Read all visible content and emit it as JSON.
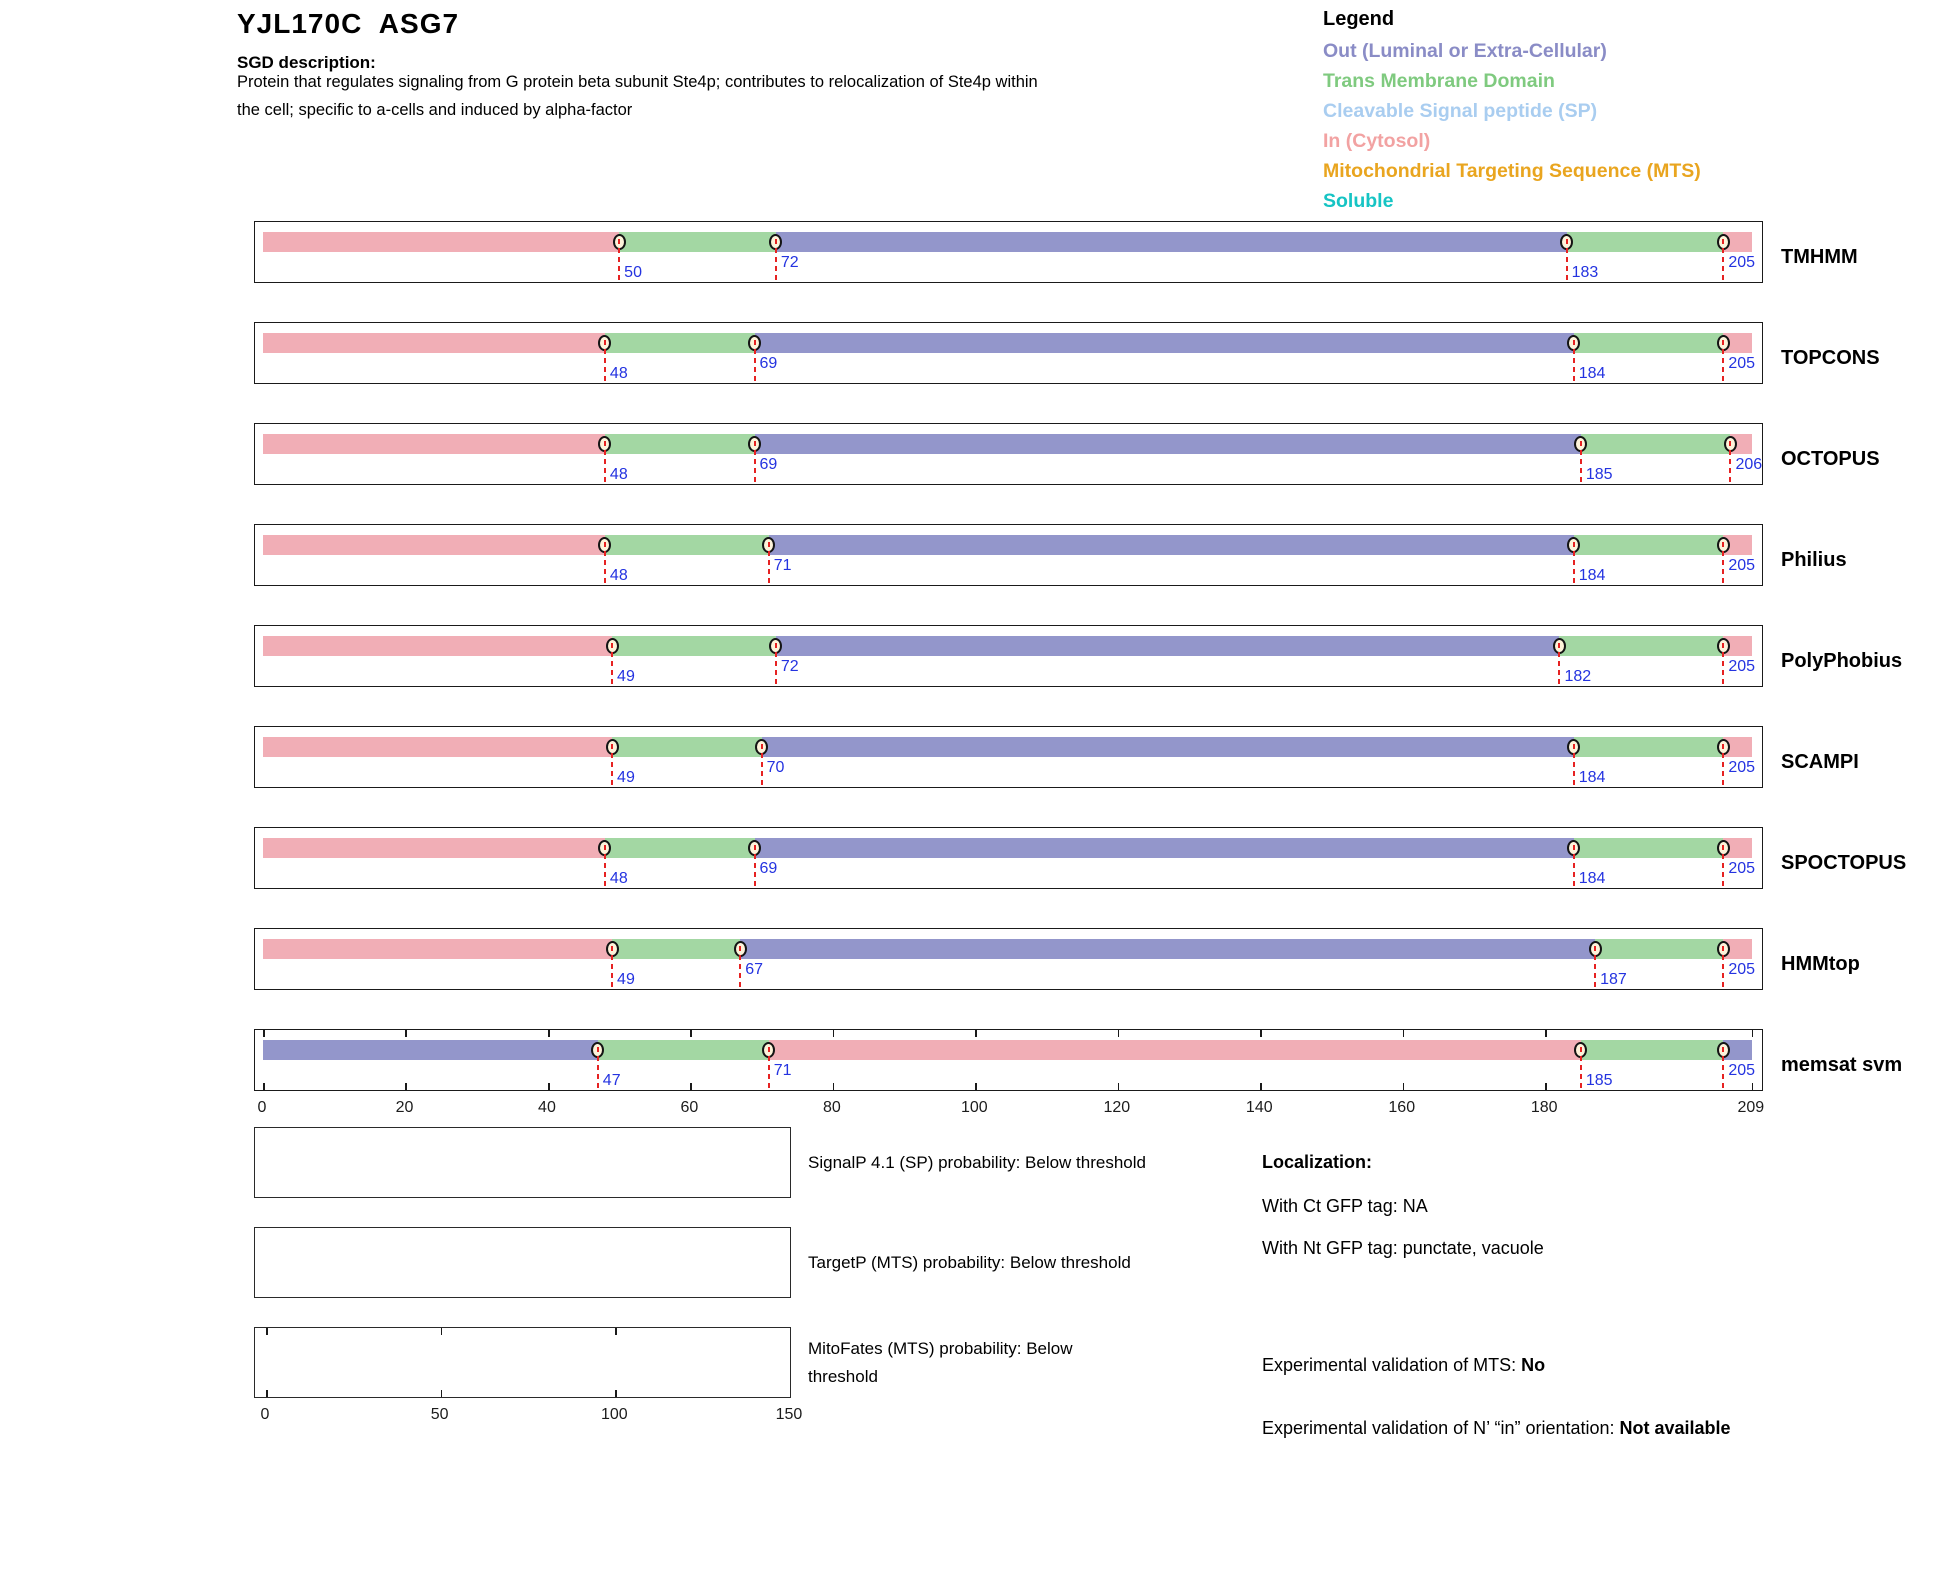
{
  "page": {
    "title": "YJL170C  ASG7",
    "sgd_heading": "SGD description:",
    "description_lines": [
      "Protein that regulates signaling from G protein beta subunit Ste4p; contributes to relocalization of Ste4p within",
      "the cell; specific to a-cells and induced by alpha-factor"
    ]
  },
  "legend": {
    "title": "Legend",
    "items": [
      {
        "label": "Out (Luminal or Extra-Cellular)",
        "color": "#8a8cc6"
      },
      {
        "label": "Trans Membrane Domain",
        "color": "#7fca7f"
      },
      {
        "label": "Cleavable Signal peptide (SP)",
        "color": "#a9cdf0"
      },
      {
        "label": "In (Cytosol)",
        "color": "#f2a2a2"
      },
      {
        "label": "Mitochondrial Targeting Sequence (MTS)",
        "color": "#e9a51f"
      },
      {
        "label": "Soluble",
        "color": "#16c4c4"
      }
    ]
  },
  "colors": {
    "out": "#9396cb",
    "tm": "#a3d7a3",
    "in": "#f1aeb6",
    "marker_fill": "#fdf3da",
    "dashed_line": "#e62222",
    "number_blue": "#2433e0"
  },
  "chart_data": {
    "type": "topology-tracks",
    "title": "Membrane topology predictions for YJL170C ASG7",
    "axis_range": [
      0,
      209
    ],
    "residue_ticks": [
      0,
      20,
      40,
      60,
      80,
      100,
      120,
      140,
      160,
      180,
      209
    ],
    "segment_legend": {
      "in": "In (Cytosol)",
      "tm": "Trans Membrane Domain",
      "out": "Out (Luminal or Extra-Cellular)"
    },
    "tracks": [
      {
        "name": "TMHMM",
        "n_term": "in",
        "boundaries": [
          50,
          72,
          183,
          205
        ],
        "show_ticks": false
      },
      {
        "name": "TOPCONS",
        "n_term": "in",
        "boundaries": [
          48,
          69,
          184,
          205
        ],
        "show_ticks": false
      },
      {
        "name": "OCTOPUS",
        "n_term": "in",
        "boundaries": [
          48,
          69,
          185,
          206
        ],
        "show_ticks": false
      },
      {
        "name": "Philius",
        "n_term": "in",
        "boundaries": [
          48,
          71,
          184,
          205
        ],
        "show_ticks": false
      },
      {
        "name": "PolyPhobius",
        "n_term": "in",
        "boundaries": [
          49,
          72,
          182,
          205
        ],
        "show_ticks": false
      },
      {
        "name": "SCAMPI",
        "n_term": "in",
        "boundaries": [
          49,
          70,
          184,
          205
        ],
        "show_ticks": false
      },
      {
        "name": "SPOCTOPUS",
        "n_term": "in",
        "boundaries": [
          48,
          69,
          184,
          205
        ],
        "show_ticks": false
      },
      {
        "name": "HMMtop",
        "n_term": "in",
        "boundaries": [
          49,
          67,
          187,
          205
        ],
        "show_ticks": false
      },
      {
        "name": "memsat svm",
        "n_term": "out",
        "boundaries": [
          47,
          71,
          185,
          205
        ],
        "show_ticks": true
      }
    ],
    "probability_plots": [
      {
        "label_lines": [
          "SignalP 4.1 (SP) probability: Below threshold"
        ],
        "has_axis_ticks": false,
        "curve": "none"
      },
      {
        "label_lines": [
          "TargetP (MTS) probability: Below threshold"
        ],
        "has_axis_ticks": false,
        "curve": "none"
      },
      {
        "label_lines": [
          "MitoFates (MTS) probability: Below",
          "threshold"
        ],
        "has_axis_ticks": true,
        "curve": "none"
      }
    ],
    "probability_axis_ticks": [
      0,
      50,
      100,
      150
    ]
  },
  "localization": {
    "heading": "Localization:",
    "ct_line": "With Ct GFP tag: NA",
    "nt_line": "With Nt GFP tag: punctate, vacuole",
    "mts_label": "Experimental validation of MTS: ",
    "mts_value": "No",
    "orientation_label": "Experimental validation of N’ “in” orientation: ",
    "orientation_value": "Not available"
  }
}
